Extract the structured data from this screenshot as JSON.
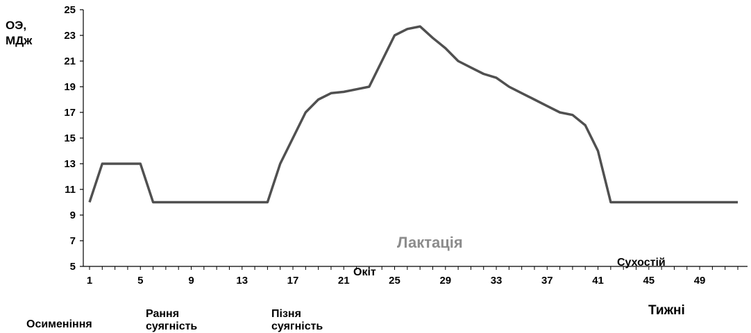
{
  "chart_data": {
    "type": "line",
    "ylabel_lines": [
      "ОЭ,",
      "МДж"
    ],
    "xlabel": "Тижні",
    "ylim": [
      5,
      25
    ],
    "yticks": [
      5,
      7,
      9,
      11,
      13,
      15,
      17,
      19,
      21,
      23,
      25
    ],
    "xlim": [
      1,
      52
    ],
    "xticks": [
      1,
      5,
      9,
      13,
      17,
      21,
      25,
      29,
      33,
      37,
      41,
      45,
      49
    ],
    "series_color": "#505050",
    "series": [
      {
        "x": [
          1,
          2,
          3,
          4,
          5,
          6,
          7,
          8,
          9,
          10,
          11,
          12,
          13,
          14,
          15,
          16,
          17,
          18,
          19,
          20,
          21,
          22,
          23,
          24,
          25,
          26,
          27,
          28,
          29,
          30,
          31,
          32,
          33,
          34,
          35,
          36,
          37,
          38,
          39,
          40,
          41,
          42,
          43,
          44,
          45,
          46,
          47,
          48,
          49,
          50,
          51,
          52
        ],
        "values": [
          10,
          13,
          13,
          13,
          13,
          10,
          10,
          10,
          10,
          10,
          10,
          10,
          10,
          10,
          10,
          13,
          15,
          17,
          18,
          18.5,
          18.6,
          18.8,
          19,
          21,
          23,
          23.5,
          23.7,
          22.8,
          22,
          21,
          20.5,
          20,
          19.7,
          19,
          18.5,
          18,
          17.5,
          17,
          16.8,
          16,
          14,
          10,
          10,
          10,
          10,
          10,
          10,
          10,
          10,
          10,
          10,
          10
        ]
      }
    ],
    "annotations": [
      {
        "key": "okit",
        "text": "Окіт"
      },
      {
        "key": "lactation",
        "text": "Лактація"
      },
      {
        "key": "dry",
        "text": "Сухостій"
      }
    ],
    "phase_labels": [
      {
        "key": "osim",
        "lines": [
          "Осименіння"
        ]
      },
      {
        "key": "early",
        "lines": [
          "Рання",
          "суягність"
        ]
      },
      {
        "key": "late",
        "lines": [
          "Пізня",
          "суягність"
        ]
      }
    ]
  }
}
